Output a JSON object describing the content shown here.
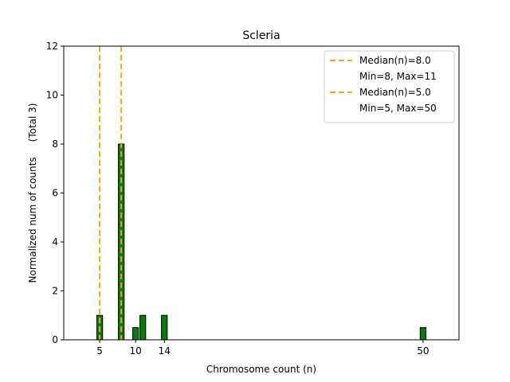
{
  "chart_data": {
    "type": "bar",
    "title": "Scleria",
    "xlabel": "Chromosome count (n)",
    "ylabel": "Normalized num of counts     (Total 3)",
    "xlim": [
      0,
      55
    ],
    "ylim": [
      0,
      12
    ],
    "x_ticks": [
      5,
      10,
      14,
      50
    ],
    "y_ticks": [
      0,
      2,
      4,
      6,
      8,
      10,
      12
    ],
    "bar_color": "#008000",
    "bar_edge": "#000000",
    "bars": [
      {
        "x": 5,
        "value": 1
      },
      {
        "x": 8,
        "value": 8
      },
      {
        "x": 10,
        "value": 0.5
      },
      {
        "x": 11,
        "value": 1
      },
      {
        "x": 14,
        "value": 1
      },
      {
        "x": 50,
        "value": 0.5
      }
    ],
    "median_lines": [
      {
        "x": 8,
        "color": "#FFA500"
      },
      {
        "x": 5,
        "color": "#FFA500"
      }
    ],
    "legend": {
      "position": "top-right",
      "entries": [
        {
          "label": "Median(n)=8.0",
          "line": true
        },
        {
          "label": "Min=8, Max=11",
          "line": false
        },
        {
          "label": "Median(n)=5.0",
          "line": true
        },
        {
          "label": "Min=5, Max=50",
          "line": false
        }
      ]
    }
  }
}
